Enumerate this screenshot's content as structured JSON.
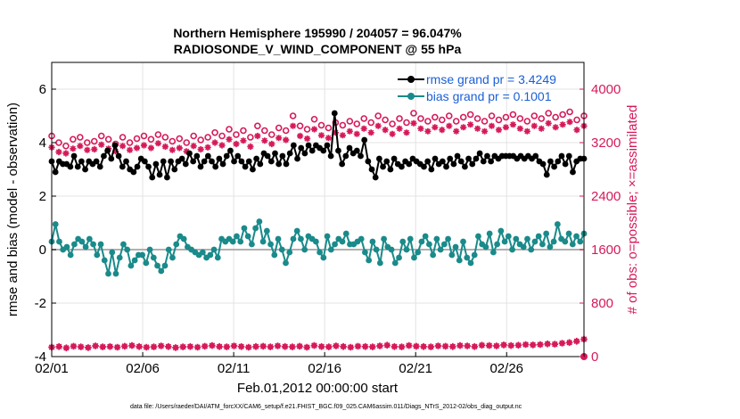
{
  "chart_data": {
    "type": "line",
    "title_line1": "Northern Hemisphere 195990 / 204057 = 96.047%",
    "title_line2": "RADIOSONDE_V_WIND_COMPONENT @ 55 hPa",
    "xlabel": "Feb.01,2012 00:00:00 start",
    "ylabel_left": "rmse and bias (model - observation)",
    "ylabel_right": "# of obs: o=possible; ×=assimilated",
    "xlim": [
      0,
      29.25
    ],
    "ylim_left": [
      -4,
      7
    ],
    "ylim_right": [
      0,
      4400
    ],
    "x_ticks": [
      0,
      5,
      10,
      15,
      20,
      25
    ],
    "x_tick_labels": [
      "02/01",
      "02/06",
      "02/11",
      "02/16",
      "02/21",
      "02/26"
    ],
    "y_ticks_left": [
      -4,
      -2,
      0,
      2,
      4,
      6
    ],
    "y_tick_labels_left": [
      "-4",
      "-2",
      "0",
      "2",
      "4",
      "6"
    ],
    "y_ticks_right": [
      0,
      800,
      1600,
      2400,
      3200,
      4000
    ],
    "y_tick_labels_right": [
      "0",
      "800",
      "1600",
      "2400",
      "3200",
      "4000"
    ],
    "legend": [
      {
        "label": "rmse grand pr = 3.4249",
        "color": "#000000"
      },
      {
        "label": "bias grand pr = 0.1001",
        "color": "#1a8a8a"
      }
    ],
    "colors": {
      "rmse": "#000000",
      "bias": "#1a8a8a",
      "obs": "#d6195a",
      "zero_line": "#b0b0b0"
    },
    "series": [
      {
        "name": "rmse",
        "values": [
          3.3,
          2.9,
          3.3,
          3.2,
          3.2,
          3.1,
          3.5,
          3.1,
          3.3,
          3.0,
          3.3,
          3.2,
          3.3,
          3.1,
          3.5,
          3.7,
          3.4,
          3.9,
          3.5,
          3.1,
          3.3,
          3.0,
          2.9,
          3.1,
          3.4,
          3.3,
          3.1,
          2.7,
          3.2,
          2.8,
          3.3,
          2.7,
          3.3,
          3.0,
          3.3,
          3.4,
          3.2,
          3.6,
          3.3,
          3.5,
          3.1,
          3.3,
          3.5,
          3.3,
          3.1,
          3.4,
          3.2,
          3.5,
          3.7,
          3.3,
          3.5,
          3.3,
          3.1,
          3.3,
          3.0,
          3.4,
          3.2,
          3.6,
          3.5,
          3.3,
          3.6,
          3.2,
          3.5,
          3.2,
          3.6,
          3.9,
          3.4,
          3.8,
          3.6,
          3.9,
          3.7,
          3.9,
          3.8,
          3.7,
          3.9,
          3.5,
          5.1,
          3.7,
          3.2,
          3.5,
          3.8,
          3.6,
          3.7,
          3.5,
          4.1,
          3.3,
          3.0,
          2.7,
          3.4,
          3.1,
          3.3,
          3.0,
          3.4,
          3.2,
          3.1,
          3.3,
          3.2,
          3.4,
          3.3,
          3.2,
          3.1,
          3.3,
          3.0,
          3.4,
          3.2,
          3.3,
          3.1,
          3.4,
          3.2,
          3.5,
          3.3,
          3.1,
          3.4,
          3.2,
          3.4,
          3.6,
          3.3,
          3.5,
          3.3,
          3.5,
          3.4,
          3.5,
          3.5,
          3.5,
          3.5,
          3.4,
          3.5,
          3.4,
          3.5,
          3.4,
          3.5,
          3.3,
          3.2,
          2.8,
          3.3,
          3.1,
          3.3,
          3.5,
          3.2,
          3.5,
          2.9,
          3.3,
          3.4,
          3.4
        ]
      },
      {
        "name": "bias",
        "values": [
          0.3,
          0.95,
          0.3,
          0.0,
          0.1,
          -0.2,
          0.2,
          0.4,
          0.3,
          0.1,
          0.4,
          0.2,
          -0.2,
          0.2,
          -0.4,
          -0.9,
          -0.1,
          -0.9,
          -0.3,
          0.2,
          0.0,
          -0.6,
          -0.4,
          -0.2,
          -0.2,
          -0.5,
          0.0,
          -0.3,
          -0.6,
          -0.8,
          -0.6,
          0.0,
          -0.3,
          0.2,
          0.5,
          0.4,
          0.1,
          0.0,
          -0.1,
          -0.2,
          -0.1,
          -0.3,
          -0.2,
          0.0,
          -0.3,
          0.4,
          0.3,
          0.4,
          0.3,
          0.5,
          0.3,
          0.8,
          0.5,
          0.2,
          0.8,
          1.05,
          0.3,
          0.7,
          0.2,
          -0.2,
          0.4,
          0.0,
          -0.5,
          -0.1,
          0.4,
          0.7,
          0.4,
          0.0,
          0.5,
          0.4,
          0.3,
          -0.1,
          -0.3,
          0.5,
          0.0,
          0.2,
          0.4,
          0.3,
          0.6,
          0.2,
          0.2,
          0.3,
          0.4,
          -0.1,
          -0.4,
          0.3,
          0.0,
          -0.5,
          0.4,
          0.1,
          0.0,
          -0.5,
          -0.3,
          0.3,
          0.0,
          0.4,
          -0.3,
          -0.1,
          0.3,
          0.5,
          0.2,
          -0.2,
          0.4,
          0.0,
          0.2,
          0.4,
          -0.2,
          0.1,
          -0.4,
          0.3,
          -0.3,
          -0.5,
          -0.2,
          0.5,
          0.2,
          0.1,
          0.6,
          -0.1,
          0.2,
          0.7,
          0.3,
          0.5,
          0.0,
          0.4,
          0.2,
          0.1,
          0.4,
          0.0,
          0.3,
          0.5,
          0.2,
          0.6,
          0.1,
          0.3,
          0.95,
          0.4,
          0.3,
          0.6,
          0.2,
          0.5,
          0.3,
          0.6
        ]
      },
      {
        "name": "obs_possible",
        "values": [
          3300,
          3200,
          3150,
          3250,
          3280,
          3200,
          3220,
          3300,
          3250,
          3180,
          3280,
          3200,
          3260,
          3300,
          3250,
          3320,
          3280,
          3220,
          3260,
          3200,
          3300,
          3240,
          3280,
          3350,
          3300,
          3400,
          3320,
          3380,
          3280,
          3450,
          3380,
          3320,
          3420,
          3380,
          3600,
          3450,
          3400,
          3550,
          3460,
          3420,
          3500,
          3460,
          3520,
          3480,
          3560,
          3500,
          3600,
          3540,
          3480,
          3560,
          3500,
          3640,
          3560,
          3520,
          3580,
          3540,
          3600,
          3520,
          3580,
          3620,
          3560,
          3520,
          3600,
          3540,
          3580,
          3620,
          3560,
          3520,
          3600,
          3560,
          3640,
          3580,
          3620,
          3660,
          3540,
          3600
        ]
      },
      {
        "name": "obs_assimilated",
        "values": [
          3130,
          3060,
          3040,
          3110,
          3150,
          3090,
          3100,
          3170,
          3110,
          3070,
          3150,
          3090,
          3120,
          3160,
          3120,
          3190,
          3140,
          3090,
          3120,
          3070,
          3150,
          3100,
          3130,
          3200,
          3160,
          3250,
          3180,
          3230,
          3140,
          3300,
          3230,
          3180,
          3270,
          3240,
          3450,
          3300,
          3260,
          3400,
          3310,
          3270,
          3350,
          3310,
          3370,
          3330,
          3410,
          3350,
          3450,
          3390,
          3330,
          3410,
          3350,
          3490,
          3410,
          3370,
          3430,
          3390,
          3450,
          3370,
          3430,
          3470,
          3410,
          3370,
          3450,
          3390,
          3430,
          3470,
          3410,
          3370,
          3450,
          3410,
          3490,
          3430,
          3470,
          3510,
          3390,
          3450
        ]
      },
      {
        "name": "obs_bottom",
        "values": [
          140,
          150,
          130,
          155,
          145,
          135,
          160,
          145,
          150,
          140,
          155,
          165,
          150,
          140,
          145,
          160,
          150,
          135,
          145,
          150,
          140,
          155,
          165,
          150,
          145,
          160,
          150,
          140,
          150,
          155,
          145,
          160,
          150,
          145,
          155,
          140,
          165,
          150,
          145,
          160,
          150,
          140,
          155,
          150,
          145,
          160,
          170,
          150,
          145,
          165,
          155,
          150,
          145,
          160,
          155,
          150,
          165,
          160,
          150,
          170,
          165,
          160,
          175,
          165,
          170,
          180,
          175,
          180,
          190,
          185,
          200,
          210,
          230,
          260
        ]
      }
    ],
    "footer": "data file: /Users/raeder/DAI/ATM_forcXX/CAM6_setup/f.e21.FHIST_BGC.f09_025.CAM6assim.011/Diags_NTrS_2012-02/obs_diag_output.nc"
  }
}
